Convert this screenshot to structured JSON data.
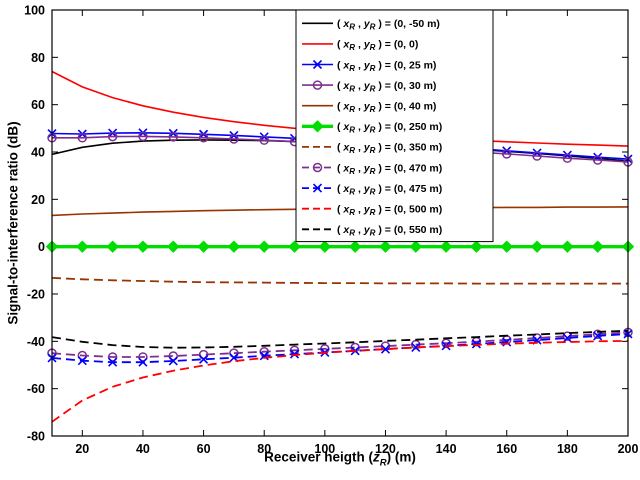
{
  "figure": {
    "xlabel": {
      "prefix": "Receiver heigth (",
      "var": "z",
      "sub": "R",
      "suffix": ") (m)"
    },
    "ylabel": "Signal-to-interference ratio (dB)"
  },
  "chart_data": {
    "type": "line",
    "title": "",
    "xlabel": "Receiver heigth (z_R) (m)",
    "ylabel": "Signal-to-interference ratio (dB)",
    "xlim": [
      10,
      200
    ],
    "ylim": [
      -80,
      100
    ],
    "x_ticks": [
      20,
      40,
      60,
      80,
      100,
      120,
      140,
      160,
      180,
      200
    ],
    "y_ticks": [
      -80,
      -60,
      -40,
      -20,
      0,
      20,
      40,
      60,
      80,
      100
    ],
    "grid": false,
    "legend_position": "north",
    "legend_prefix": {
      "open": "( ",
      "x": "x",
      "sub": "R",
      "comma": " , ",
      "y": "y",
      "close": " ) = "
    },
    "x": [
      10,
      20,
      30,
      40,
      50,
      60,
      70,
      80,
      90,
      100,
      110,
      120,
      130,
      140,
      150,
      160,
      170,
      180,
      190,
      200
    ],
    "series": [
      {
        "label_value": "(0, -50 m)",
        "color": "#000000",
        "dash": "solid",
        "marker": "none",
        "width": 1.6,
        "values": [
          39,
          42,
          43.7,
          44.6,
          45,
          45.1,
          45,
          44.8,
          44.4,
          44,
          43.5,
          43,
          42.4,
          41.8,
          41.1,
          40.3,
          39.4,
          38.4,
          37.3,
          36.2
        ]
      },
      {
        "label_value": "(0, 0)",
        "color": "#ff0000",
        "dash": "solid",
        "marker": "none",
        "width": 1.6,
        "values": [
          74,
          67.5,
          63,
          59.5,
          56.8,
          54.6,
          52.8,
          51.3,
          50,
          48.9,
          47.9,
          47,
          46.2,
          45.5,
          44.9,
          44.3,
          43.8,
          43.3,
          42.9,
          42.5
        ]
      },
      {
        "label_value": "(0, 25 m)",
        "color": "#0000ff",
        "dash": "solid",
        "marker": "x",
        "width": 1.6,
        "values": [
          47.8,
          47.6,
          48,
          48.1,
          47.9,
          47.5,
          47,
          46.4,
          45.8,
          45.2,
          44.5,
          43.8,
          43,
          42.2,
          41.4,
          40.5,
          39.6,
          38.7,
          37.8,
          37
        ]
      },
      {
        "label_value": "(0, 30 m)",
        "color": "#7E2F8E",
        "dash": "solid",
        "marker": "o",
        "width": 1.6,
        "values": [
          46,
          46,
          46.5,
          46.6,
          46.4,
          46,
          45.5,
          45,
          44.4,
          43.8,
          43.1,
          42.4,
          41.6,
          40.8,
          40,
          39.2,
          38.3,
          37.4,
          36.6,
          35.8
        ]
      },
      {
        "label_value": "(0, 40 m)",
        "color": "#993300",
        "dash": "solid",
        "marker": "none",
        "width": 1.6,
        "values": [
          13.2,
          13.8,
          14.2,
          14.6,
          14.9,
          15.2,
          15.4,
          15.6,
          15.8,
          16,
          16.1,
          16.2,
          16.3,
          16.4,
          16.5,
          16.6,
          16.6,
          16.7,
          16.7,
          16.8
        ]
      },
      {
        "label_value": "(0, 250 m)",
        "color": "#00dd00",
        "dash": "solid",
        "marker": "diamond",
        "width": 3.4,
        "values": [
          0,
          0,
          0,
          0,
          0,
          0,
          0,
          0,
          0,
          0,
          0,
          0,
          0,
          0,
          0,
          0,
          0,
          0,
          0,
          0
        ]
      },
      {
        "label_value": "(0, 350 m)",
        "color": "#993300",
        "dash": "dashed",
        "marker": "none",
        "width": 1.8,
        "values": [
          -13.2,
          -13.8,
          -14.2,
          -14.5,
          -14.8,
          -15,
          -15.1,
          -15.2,
          -15.3,
          -15.4,
          -15.4,
          -15.5,
          -15.5,
          -15.5,
          -15.6,
          -15.6,
          -15.6,
          -15.6,
          -15.6,
          -15.6
        ]
      },
      {
        "label_value": "(0, 470 m)",
        "color": "#7E2F8E",
        "dash": "dashed",
        "marker": "o",
        "width": 1.8,
        "values": [
          -45,
          -46,
          -46.6,
          -46.6,
          -46.2,
          -45.6,
          -45,
          -44.4,
          -43.8,
          -43.2,
          -42.6,
          -42,
          -41.4,
          -40.8,
          -40.1,
          -39.4,
          -38.6,
          -37.8,
          -37,
          -36.2
        ]
      },
      {
        "label_value": "(0, 475 m)",
        "color": "#0000ff",
        "dash": "dashed",
        "marker": "x",
        "width": 1.8,
        "values": [
          -47,
          -48.2,
          -48.8,
          -48.8,
          -48.3,
          -47.6,
          -46.9,
          -46.1,
          -45.4,
          -44.7,
          -44,
          -43.3,
          -42.6,
          -41.9,
          -41.1,
          -40.3,
          -39.5,
          -38.6,
          -37.7,
          -36.9
        ]
      },
      {
        "label_value": "(0, 500 m)",
        "color": "#ff0000",
        "dash": "dashed",
        "marker": "none",
        "width": 1.8,
        "values": [
          -74,
          -65,
          -59.2,
          -55.3,
          -52.4,
          -50.2,
          -48.4,
          -47,
          -45.8,
          -44.8,
          -44,
          -43.3,
          -42.6,
          -42,
          -41.5,
          -41,
          -40.6,
          -40.3,
          -40,
          -39.8
        ]
      },
      {
        "label_value": "(0, 550 m)",
        "color": "#000000",
        "dash": "dashed",
        "marker": "none",
        "width": 1.8,
        "values": [
          -38.2,
          -40.2,
          -41.6,
          -42.4,
          -42.7,
          -42.6,
          -42.3,
          -41.9,
          -41.4,
          -40.9,
          -40.4,
          -39.8,
          -39.3,
          -38.7,
          -38.2,
          -37.6,
          -37.1,
          -36.5,
          -36,
          -35.5
        ]
      }
    ]
  }
}
